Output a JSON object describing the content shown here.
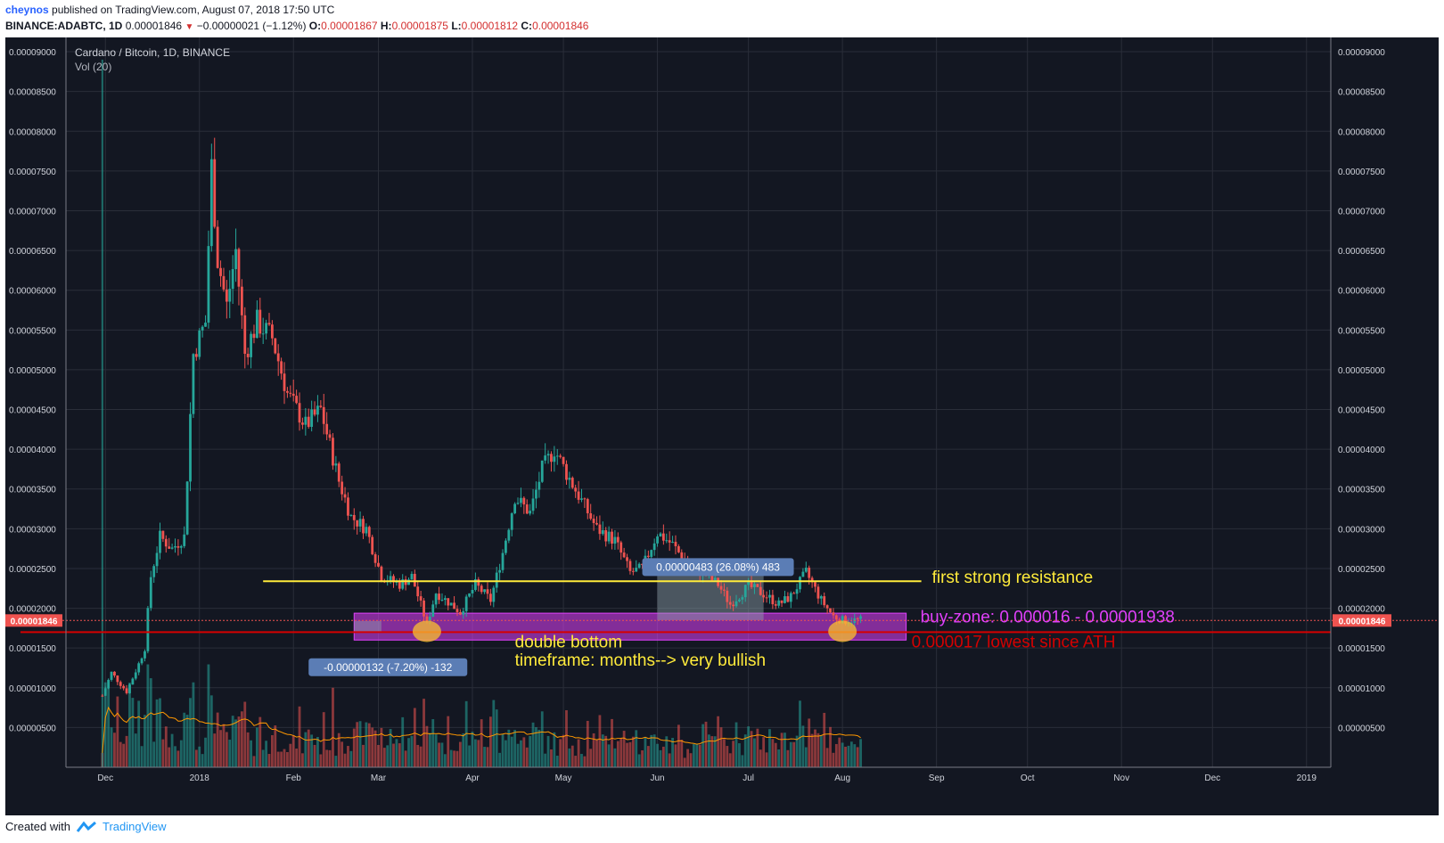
{
  "header": {
    "author": "cheynos",
    "published": "published on TradingView.com, August 07, 2018 17:50 UTC",
    "symbol": "BINANCE:ADABTC, 1D",
    "last": "0.00001846",
    "change": "−0.00000021 (−1.12%)",
    "o_label": "O:",
    "o": "0.00001867",
    "h_label": "H:",
    "h": "0.00001875",
    "l_label": "L:",
    "l": "0.00001812",
    "c_label": "C:",
    "c": "0.00001846"
  },
  "footer": {
    "created_with": "Created with",
    "brand": "TradingView"
  },
  "colors": {
    "background": "#131722",
    "up": "#26a69a",
    "down": "#ef5350",
    "resistance": "#ffeb3b",
    "buy_zone": "#e040fb",
    "support": "#d50000"
  },
  "chart_data": {
    "type": "candlestick",
    "title": "Cardano / Bitcoin, 1D, BINANCE",
    "indicator": "Vol (20)",
    "yticks": [
      "0.00000500",
      "0.00001000",
      "0.00001500",
      "0.00002000",
      "0.00002500",
      "0.00003000",
      "0.00003500",
      "0.00004000",
      "0.00004500",
      "0.00005000",
      "0.00005500",
      "0.00006000",
      "0.00006500",
      "0.00007000",
      "0.00007500",
      "0.00008000",
      "0.00008500",
      "0.00009000"
    ],
    "ylim": [
      0,
      9.18e-05
    ],
    "xrange": [
      "2017-11-18",
      "2019-01-09"
    ],
    "xticks": [
      {
        "label": "Dec",
        "date": "2017-12-01"
      },
      {
        "label": "2018",
        "date": "2018-01-01"
      },
      {
        "label": "Feb",
        "date": "2018-02-01"
      },
      {
        "label": "Mar",
        "date": "2018-03-01"
      },
      {
        "label": "Apr",
        "date": "2018-04-01"
      },
      {
        "label": "May",
        "date": "2018-05-01"
      },
      {
        "label": "Jun",
        "date": "2018-06-01"
      },
      {
        "label": "Jul",
        "date": "2018-07-01"
      },
      {
        "label": "Aug",
        "date": "2018-08-01"
      },
      {
        "label": "Sep",
        "date": "2018-09-01"
      },
      {
        "label": "Oct",
        "date": "2018-10-01"
      },
      {
        "label": "Nov",
        "date": "2018-11-01"
      },
      {
        "label": "Dec",
        "date": "2018-12-01"
      },
      {
        "label": "2019",
        "date": "2019-01-01"
      }
    ],
    "price_path": [
      [
        "2017-11-30",
        9e-06
      ],
      [
        "2017-12-03",
        1.19e-05
      ],
      [
        "2017-12-08",
        9.5e-06
      ],
      [
        "2017-12-12",
        1.3e-05
      ],
      [
        "2017-12-14",
        1.5e-05
      ],
      [
        "2017-12-16",
        2.4e-05
      ],
      [
        "2017-12-19",
        2.9e-05
      ],
      [
        "2017-12-23",
        2.75e-05
      ],
      [
        "2017-12-27",
        2.9e-05
      ],
      [
        "2017-12-30",
        5.2e-05
      ],
      [
        "2018-01-03",
        5.6e-05
      ],
      [
        "2018-01-05",
        7.55e-05
      ],
      [
        "2018-01-07",
        6.4e-05
      ],
      [
        "2018-01-10",
        5.8e-05
      ],
      [
        "2018-01-13",
        6.5e-05
      ],
      [
        "2018-01-16",
        5.2e-05
      ],
      [
        "2018-01-20",
        5.6e-05
      ],
      [
        "2018-01-25",
        5.4e-05
      ],
      [
        "2018-01-30",
        4.7e-05
      ],
      [
        "2018-02-05",
        4.3e-05
      ],
      [
        "2018-02-10",
        4.5e-05
      ],
      [
        "2018-02-16",
        3.6e-05
      ],
      [
        "2018-02-20",
        3.15e-05
      ],
      [
        "2018-02-25",
        3e-05
      ],
      [
        "2018-03-02",
        2.4e-05
      ],
      [
        "2018-03-08",
        2.3e-05
      ],
      [
        "2018-03-12",
        2.4e-05
      ],
      [
        "2018-03-17",
        1.8e-05
      ],
      [
        "2018-03-20",
        2.2e-05
      ],
      [
        "2018-03-25",
        2.05e-05
      ],
      [
        "2018-03-28",
        1.95e-05
      ],
      [
        "2018-04-02",
        2.3e-05
      ],
      [
        "2018-04-07",
        2.1e-05
      ],
      [
        "2018-04-11",
        2.7e-05
      ],
      [
        "2018-04-15",
        3.4e-05
      ],
      [
        "2018-04-20",
        3.2e-05
      ],
      [
        "2018-04-24",
        3.75e-05
      ],
      [
        "2018-04-28",
        4e-05
      ],
      [
        "2018-05-02",
        3.7e-05
      ],
      [
        "2018-05-07",
        3.35e-05
      ],
      [
        "2018-05-12",
        3e-05
      ],
      [
        "2018-05-18",
        2.85e-05
      ],
      [
        "2018-05-23",
        2.45e-05
      ],
      [
        "2018-05-27",
        2.5e-05
      ],
      [
        "2018-06-01",
        2.95e-05
      ],
      [
        "2018-06-06",
        2.8e-05
      ],
      [
        "2018-06-11",
        2.55e-05
      ],
      [
        "2018-06-16",
        2.45e-05
      ],
      [
        "2018-06-21",
        2.3e-05
      ],
      [
        "2018-06-25",
        2.05e-05
      ],
      [
        "2018-07-01",
        2.28e-05
      ],
      [
        "2018-07-06",
        2.18e-05
      ],
      [
        "2018-07-11",
        2.05e-05
      ],
      [
        "2018-07-15",
        2.15e-05
      ],
      [
        "2018-07-20",
        2.45e-05
      ],
      [
        "2018-07-25",
        2.1e-05
      ],
      [
        "2018-07-29",
        1.9e-05
      ],
      [
        "2018-08-01",
        1.85e-05
      ],
      [
        "2018-08-07",
        1.85e-05
      ]
    ],
    "volume": {
      "max_spike_date": "2017-11-30",
      "avg_peak": 9.5e-06
    },
    "annotations": {
      "resistance": {
        "value": 2.34e-05,
        "from": "2018-01-22",
        "to": "2018-08-27",
        "label": "first strong resistance"
      },
      "buy_zone": {
        "low": 1.6e-05,
        "high": 1.938e-05,
        "from": "2018-02-21",
        "to": "2018-08-22",
        "label": "buy-zone: 0.000016 - 0.00001938"
      },
      "support": {
        "value": 1.7e-05,
        "from": "2017-11-03",
        "to": "2019-01-09",
        "label": "0.000017 lowest since ATH"
      },
      "double_bottom": {
        "label": "double bottom",
        "sublabel": "timeframe: months--> very bullish",
        "points": [
          "2018-03-17",
          "2018-08-01"
        ]
      },
      "measure_left": {
        "label": "-0.00000132 (-7.20%) -132",
        "from": "2018-02-21",
        "to": "2018-03-02"
      },
      "measure_right": {
        "label": "0.00000483 (26.08%) 483",
        "from": "2018-06-01",
        "to": "2018-07-06"
      },
      "last_price": {
        "value": 1.846e-05,
        "label": "0.00001846"
      }
    }
  }
}
